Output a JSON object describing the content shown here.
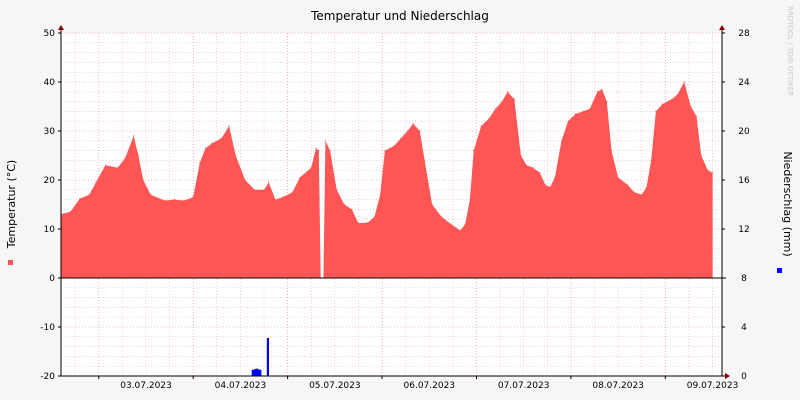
{
  "chart_data": {
    "type": "area",
    "title": "Temperatur und Niederschlag",
    "watermark": "RRDTOOL / TOBI OETIKER",
    "ylabel_left": "Temperatur (°C)",
    "ylabel_right": "Niederschlag (mm)",
    "ylim_left": [
      -20,
      50
    ],
    "ylim_right": [
      0,
      28
    ],
    "yticks_left": [
      "50",
      "40",
      "30",
      "20",
      "10",
      "0",
      "-10",
      "-20"
    ],
    "yticks_right": [
      "28",
      "24",
      "20",
      "16",
      "12",
      "8",
      "4",
      "0"
    ],
    "xlim_days": [
      2.6,
      9.6
    ],
    "x_date_labels": [
      "03.07.2023",
      "04.07.2023",
      "05.07.2023",
      "06.07.2023",
      "07.07.2023",
      "08.07.2023",
      "09.07.2023"
    ],
    "grid": true,
    "colors": {
      "temperature": "#ff5555",
      "precipitation": "#0000ff",
      "grid_minor": "#e6b4b4",
      "axis": "#000000",
      "arrow": "#8b0000"
    },
    "series": [
      {
        "name": "Temperatur",
        "unit": "°C",
        "points": [
          [
            2.6,
            13.0
          ],
          [
            2.7,
            13.5
          ],
          [
            2.8,
            16.2
          ],
          [
            2.9,
            17.0
          ],
          [
            2.97,
            19.5
          ],
          [
            3.07,
            23.0
          ],
          [
            3.2,
            22.5
          ],
          [
            3.28,
            24.5
          ],
          [
            3.37,
            29.0
          ],
          [
            3.42,
            25.0
          ],
          [
            3.47,
            20.0
          ],
          [
            3.55,
            17.0
          ],
          [
            3.7,
            15.8
          ],
          [
            3.8,
            16.0
          ],
          [
            3.9,
            15.8
          ],
          [
            4.0,
            16.5
          ],
          [
            4.07,
            23.5
          ],
          [
            4.13,
            26.5
          ],
          [
            4.2,
            27.5
          ],
          [
            4.3,
            28.5
          ],
          [
            4.38,
            31.0
          ],
          [
            4.45,
            25.0
          ],
          [
            4.55,
            20.0
          ],
          [
            4.65,
            18.0
          ],
          [
            4.75,
            18.0
          ],
          [
            4.8,
            19.5
          ],
          [
            4.87,
            16.0
          ],
          [
            4.95,
            16.5
          ],
          [
            5.05,
            17.5
          ],
          [
            5.13,
            20.5
          ],
          [
            5.25,
            22.5
          ],
          [
            5.3,
            26.5
          ],
          [
            5.33,
            26.0
          ],
          [
            5.35,
            0.0
          ],
          [
            5.38,
            0.0
          ],
          [
            5.4,
            28.0
          ],
          [
            5.45,
            26.0
          ],
          [
            5.52,
            18.0
          ],
          [
            5.6,
            15.0
          ],
          [
            5.68,
            14.0
          ],
          [
            5.75,
            11.2
          ],
          [
            5.85,
            11.3
          ],
          [
            5.92,
            12.5
          ],
          [
            5.98,
            17.0
          ],
          [
            6.03,
            26.0
          ],
          [
            6.13,
            27.0
          ],
          [
            6.2,
            28.5
          ],
          [
            6.27,
            30.0
          ],
          [
            6.33,
            31.5
          ],
          [
            6.4,
            30.0
          ],
          [
            6.45,
            24.0
          ],
          [
            6.53,
            15.0
          ],
          [
            6.63,
            12.5
          ],
          [
            6.73,
            11.0
          ],
          [
            6.83,
            9.7
          ],
          [
            6.88,
            11.0
          ],
          [
            6.93,
            16.0
          ],
          [
            6.97,
            26.0
          ],
          [
            7.05,
            31.0
          ],
          [
            7.13,
            32.5
          ],
          [
            7.2,
            34.5
          ],
          [
            7.27,
            36.0
          ],
          [
            7.33,
            38.0
          ],
          [
            7.4,
            36.5
          ],
          [
            7.47,
            25.0
          ],
          [
            7.53,
            23.0
          ],
          [
            7.6,
            22.5
          ],
          [
            7.67,
            21.5
          ],
          [
            7.73,
            19.0
          ],
          [
            7.78,
            18.5
          ],
          [
            7.83,
            20.5
          ],
          [
            7.9,
            28.0
          ],
          [
            7.97,
            32.0
          ],
          [
            8.05,
            33.5
          ],
          [
            8.13,
            34.0
          ],
          [
            8.2,
            34.5
          ],
          [
            8.28,
            38.0
          ],
          [
            8.33,
            38.5
          ],
          [
            8.38,
            36.0
          ],
          [
            8.43,
            26.0
          ],
          [
            8.5,
            20.5
          ],
          [
            8.6,
            19.0
          ],
          [
            8.67,
            17.5
          ],
          [
            8.75,
            17.0
          ],
          [
            8.8,
            18.5
          ],
          [
            8.85,
            24.0
          ],
          [
            8.9,
            34.0
          ],
          [
            8.97,
            35.5
          ],
          [
            9.07,
            36.5
          ],
          [
            9.13,
            37.5
          ],
          [
            9.2,
            40.0
          ],
          [
            9.27,
            35.0
          ],
          [
            9.33,
            33.0
          ],
          [
            9.38,
            25.0
          ],
          [
            9.45,
            22.0
          ],
          [
            9.5,
            21.5
          ]
        ]
      },
      {
        "name": "Niederschlag",
        "unit": "mm",
        "points": [
          [
            4.63,
            0.5
          ],
          [
            4.65,
            0.55
          ],
          [
            4.67,
            0.6
          ],
          [
            4.69,
            0.55
          ],
          [
            4.71,
            0.5
          ],
          [
            4.79,
            3.1
          ]
        ]
      }
    ]
  }
}
